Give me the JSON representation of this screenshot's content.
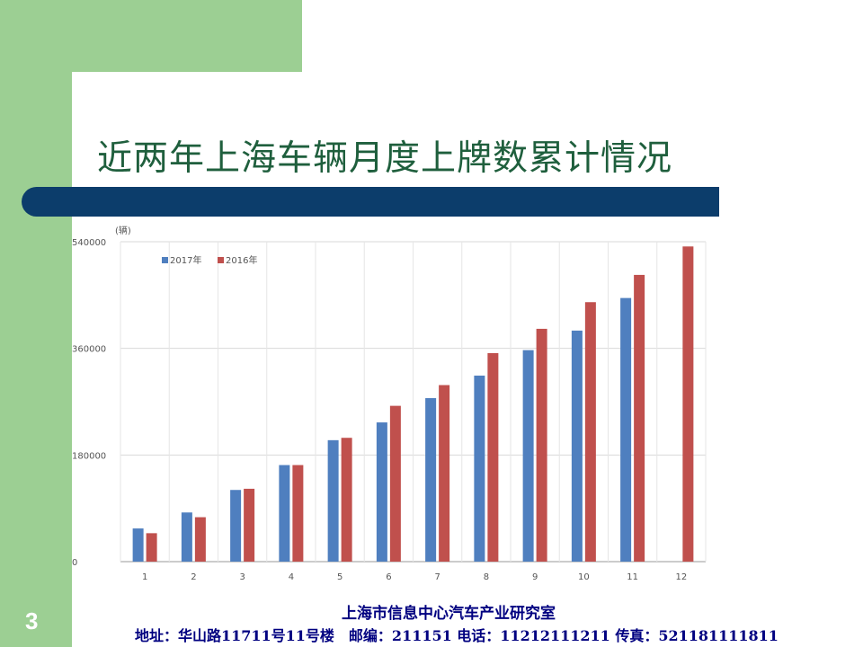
{
  "slide": {
    "title": "近两年上海车辆月度上牌数累计情况",
    "page_number": "3",
    "footer_org": "上海市信息中心汽车产业研究室",
    "footer_contact": "地址：华山路11711号11号楼　邮编：211151 电话：11212111211 传真：521181111811",
    "colors": {
      "green": "#9ccf93",
      "navy_bar": "#0c3d6b",
      "title_text": "#1f5f3d",
      "footer_text": "#000080"
    }
  },
  "chart_data": {
    "type": "bar",
    "title": "",
    "xlabel": "",
    "ylabel": "(辆)",
    "categories": [
      "1",
      "2",
      "3",
      "4",
      "5",
      "6",
      "7",
      "8",
      "9",
      "10",
      "11",
      "12"
    ],
    "ylim": [
      0,
      540000
    ],
    "yticks": [
      "0",
      "180000",
      "360000",
      "540000"
    ],
    "grid": true,
    "legend_placement": "top-left",
    "series": [
      {
        "name": "2017年",
        "color": "#4f7fbf",
        "values": [
          56000,
          83000,
          121000,
          163000,
          205000,
          235000,
          276000,
          314000,
          357000,
          390000,
          445000,
          null
        ]
      },
      {
        "name": "2016年",
        "color": "#c0504d",
        "values": [
          48000,
          75000,
          123000,
          163000,
          209000,
          263000,
          298000,
          352000,
          393000,
          438000,
          484000,
          532000
        ]
      }
    ]
  }
}
